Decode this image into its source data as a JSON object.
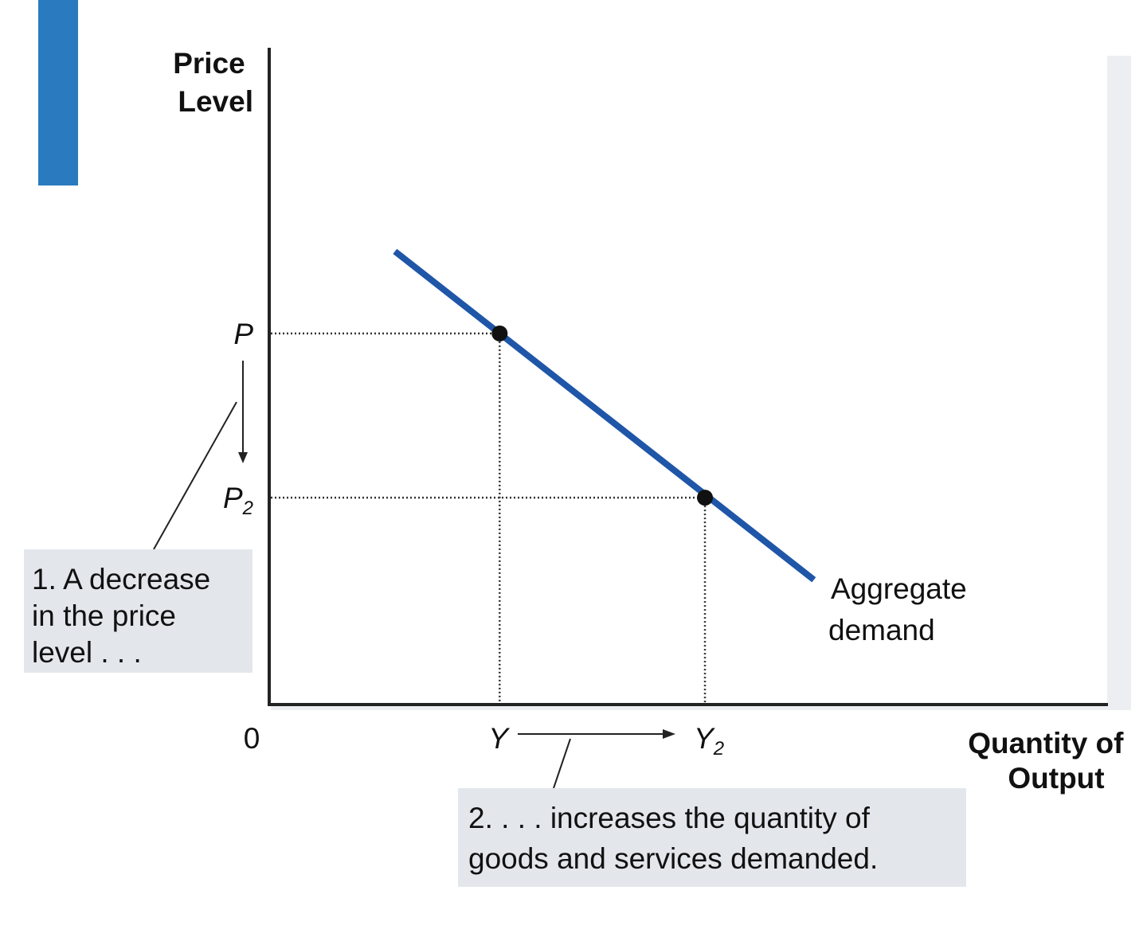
{
  "chart_data": {
    "type": "line",
    "title": "",
    "ylabel": [
      "Price",
      "Level"
    ],
    "xlabel": [
      "Quantity of",
      "Output"
    ],
    "origin_label": "0",
    "xlim": [
      0,
      100
    ],
    "ylim": [
      0,
      100
    ],
    "series": [
      {
        "name": [
          "Aggregate",
          "demand"
        ],
        "color": "#1f56a8",
        "x": [
          15,
          65
        ],
        "y": [
          69,
          19
        ]
      }
    ],
    "points": [
      {
        "x": 27.5,
        "y": 56.5,
        "x_label": "Y",
        "x_sub": "",
        "y_label": "P",
        "y_sub": ""
      },
      {
        "x": 52,
        "y": 31.5,
        "x_label": "Y",
        "x_sub": "2",
        "y_label": "P",
        "y_sub": "2"
      }
    ],
    "annotations": [
      {
        "lines": [
          "1. A decrease",
          "in the price",
          "level . . ."
        ]
      },
      {
        "lines": [
          "2. . . . increases the quantity of",
          "goods and services demanded."
        ]
      }
    ],
    "grid": false
  },
  "colors": {
    "accent_bar": "#2a7abf",
    "curve": "#1f56a8",
    "annotation_box": "#e3e7ec",
    "panel_shadow": "#eceef1"
  }
}
